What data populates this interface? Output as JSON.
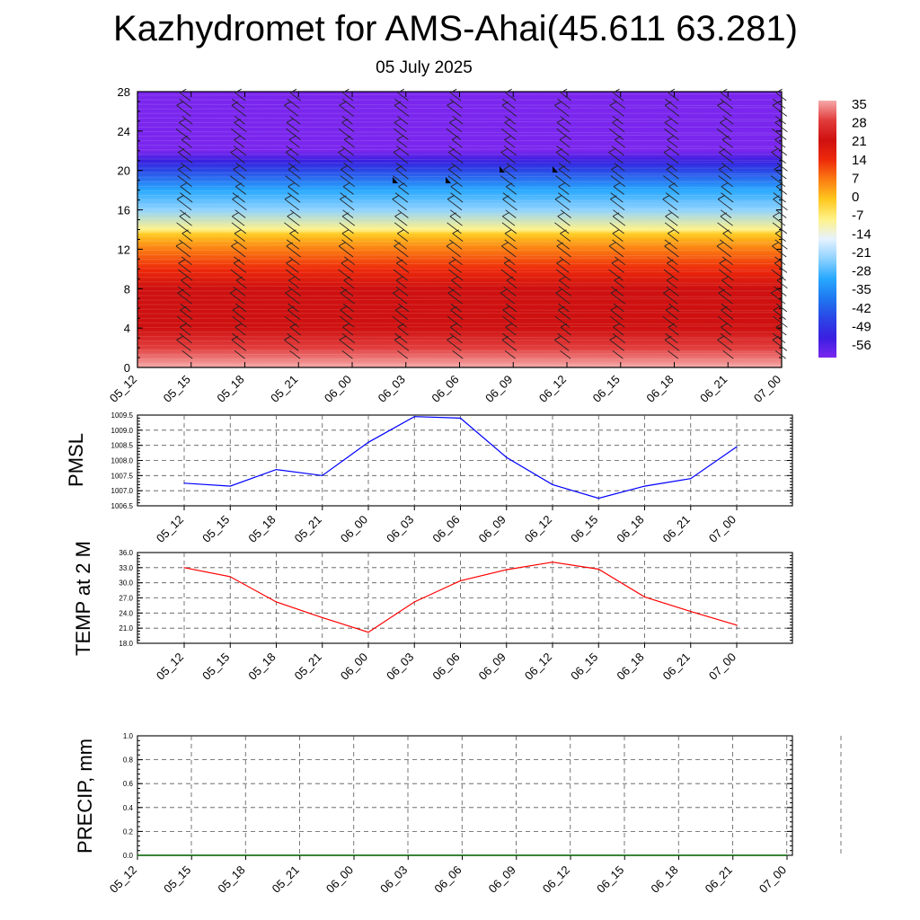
{
  "title": "Kazhydromet for AMS-Ahai(45.611 63.281)",
  "subtitle": "05 July 2025",
  "time_labels": [
    "05_12",
    "05_15",
    "05_18",
    "05_21",
    "06_00",
    "06_03",
    "06_06",
    "06_09",
    "06_12",
    "06_15",
    "06_18",
    "06_21",
    "07_00"
  ],
  "colors": {
    "pmsl_line": "#0000ff",
    "temp_line": "#ff0000",
    "precip_line": "#006400",
    "grid": "#555555"
  },
  "chart_data": [
    {
      "type": "heatmap",
      "title": "",
      "xlabel": "",
      "ylabel": "",
      "x": [
        "05_12",
        "05_15",
        "05_18",
        "05_21",
        "06_00",
        "06_03",
        "06_06",
        "06_09",
        "06_12",
        "06_15",
        "06_18",
        "06_21",
        "07_00"
      ],
      "y_ticks": [
        0,
        4,
        8,
        12,
        16,
        20,
        24,
        28
      ],
      "ylim": [
        0,
        28
      ],
      "colorbar_labels": [
        "35",
        "28",
        "21",
        "14",
        "7",
        "0",
        "-7",
        "-14",
        "-21",
        "-28",
        "-35",
        "-42",
        "-49",
        "-56"
      ],
      "vertical_profile": {
        "heights": [
          0,
          2,
          4,
          8,
          10,
          12,
          13.5,
          14,
          16,
          18,
          20,
          21,
          22,
          28
        ],
        "values": [
          35,
          28,
          24,
          18,
          12,
          7,
          0,
          -10,
          -20,
          -30,
          -40,
          -50,
          -56,
          -56
        ]
      },
      "overlay": "wind barbs"
    },
    {
      "type": "line",
      "ylabel": "PMSL",
      "x": [
        "05_12",
        "05_15",
        "05_18",
        "05_21",
        "06_00",
        "06_03",
        "06_06",
        "06_09",
        "06_12",
        "06_15",
        "06_18",
        "06_21",
        "07_00"
      ],
      "values": [
        1007.25,
        1007.15,
        1007.7,
        1007.5,
        1008.6,
        1009.45,
        1009.4,
        1008.1,
        1007.2,
        1006.75,
        1007.15,
        1007.4,
        1008.45
      ],
      "yticks": [
        "1006.5",
        "1007.0",
        "1007.5",
        "1008.0",
        "1008.5",
        "1009.0",
        "1009.5"
      ],
      "ylim": [
        1006.5,
        1009.5
      ],
      "grid": true
    },
    {
      "type": "line",
      "ylabel": "TEMP at 2 M",
      "x": [
        "05_12",
        "05_15",
        "05_18",
        "05_21",
        "06_00",
        "06_03",
        "06_06",
        "06_09",
        "06_12",
        "06_15",
        "06_18",
        "06_21",
        "07_00"
      ],
      "values": [
        33.0,
        31.2,
        26.2,
        23.1,
        20.2,
        26.2,
        30.4,
        32.6,
        34.1,
        32.7,
        27.2,
        24.3,
        21.6
      ],
      "yticks": [
        "18.0",
        "21.0",
        "24.0",
        "27.0",
        "30.0",
        "33.0",
        "36.0"
      ],
      "ylim": [
        18,
        36
      ],
      "grid": true
    },
    {
      "type": "line",
      "ylabel": "PRECIP, mm",
      "x": [
        "05_12",
        "05_15",
        "05_18",
        "05_21",
        "06_00",
        "06_03",
        "06_06",
        "06_09",
        "06_12",
        "06_15",
        "06_18",
        "06_21",
        "07_00"
      ],
      "values": [
        0,
        0,
        0,
        0,
        0,
        0,
        0,
        0,
        0,
        0,
        0,
        0,
        0
      ],
      "yticks": [
        "0.0",
        "0.2",
        "0.4",
        "0.6",
        "0.8",
        "1.0"
      ],
      "ylim": [
        0,
        1
      ],
      "grid": true
    }
  ]
}
